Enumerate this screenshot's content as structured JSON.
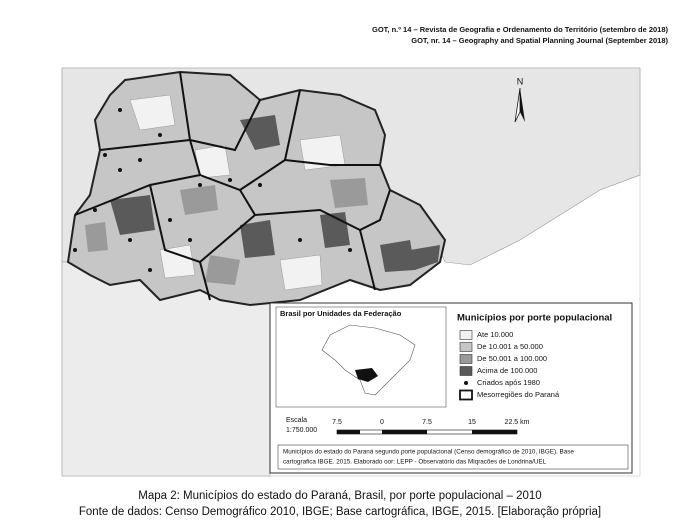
{
  "header": {
    "line1": "GOT, n.º 14 – Revista de Geografia e Ordenamento do Território (setembro de 2018)",
    "line2": "GOT, nr. 14 – Geography and Spatial Planning Journal (September 2018)"
  },
  "map": {
    "north": "N",
    "inset_title": "Brasil por Unidades da Federação",
    "legend": {
      "title": "Municípios por porte populacional",
      "items": [
        "Ate 10.000",
        "De 10.001 a 50.000",
        "De 50.001 a 100.000",
        "Acima de 100.000",
        "Criados após 1980",
        "Mesorregiões do Paraná"
      ]
    },
    "scale": {
      "label": "Escala",
      "ratio": "1:750.000",
      "ticks": [
        "7.5",
        "0",
        "7.5",
        "15",
        "22.5 km"
      ]
    },
    "source": {
      "lines": [
        "Municípios do estado do Paraná segundo porte populacional (Censo demográfico de 2010, IBGE). Base",
        "cartografica IBGE. 2015. Elaborado oor: LEPP - Observatório das Miqracões de Londrina/UEL"
      ]
    }
  },
  "caption": {
    "title": "Mapa 2: Municípios do estado do Paraná, Brasil, por porte populacional – 2010",
    "source": "Fonte de dados: Censo Demográfico 2010, IBGE; Base cartográfica, IBGE, 2015. [Elaboração própria]"
  }
}
